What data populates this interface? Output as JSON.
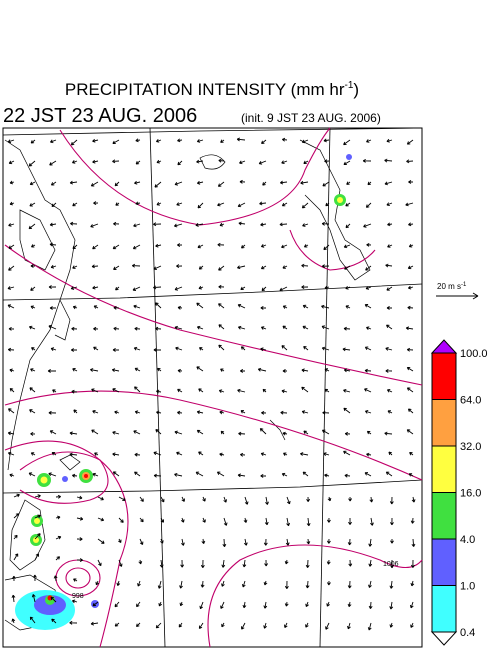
{
  "header": {
    "title": "PRECIPITATION INTENSITY (mm hr",
    "title_exponent": "-1",
    "title_close": ")",
    "valid_time": "22 JST 23 AUG. 2006",
    "init_time": "(init. 9 JST 23 AUG. 2006)"
  },
  "wind_scale": {
    "label": "20 m s",
    "exponent": "-1"
  },
  "colorbar": {
    "labels": [
      "100.0",
      "64.0",
      "32.0",
      "16.0",
      "4.0",
      "1.0",
      "0.4"
    ],
    "colors": [
      "#b000ff",
      "#ff0000",
      "#ffa040",
      "#ffff40",
      "#40e040",
      "#6060ff",
      "#40ffff",
      "#ffffff"
    ]
  },
  "isobar_labels": [
    "998",
    "1006"
  ]
}
